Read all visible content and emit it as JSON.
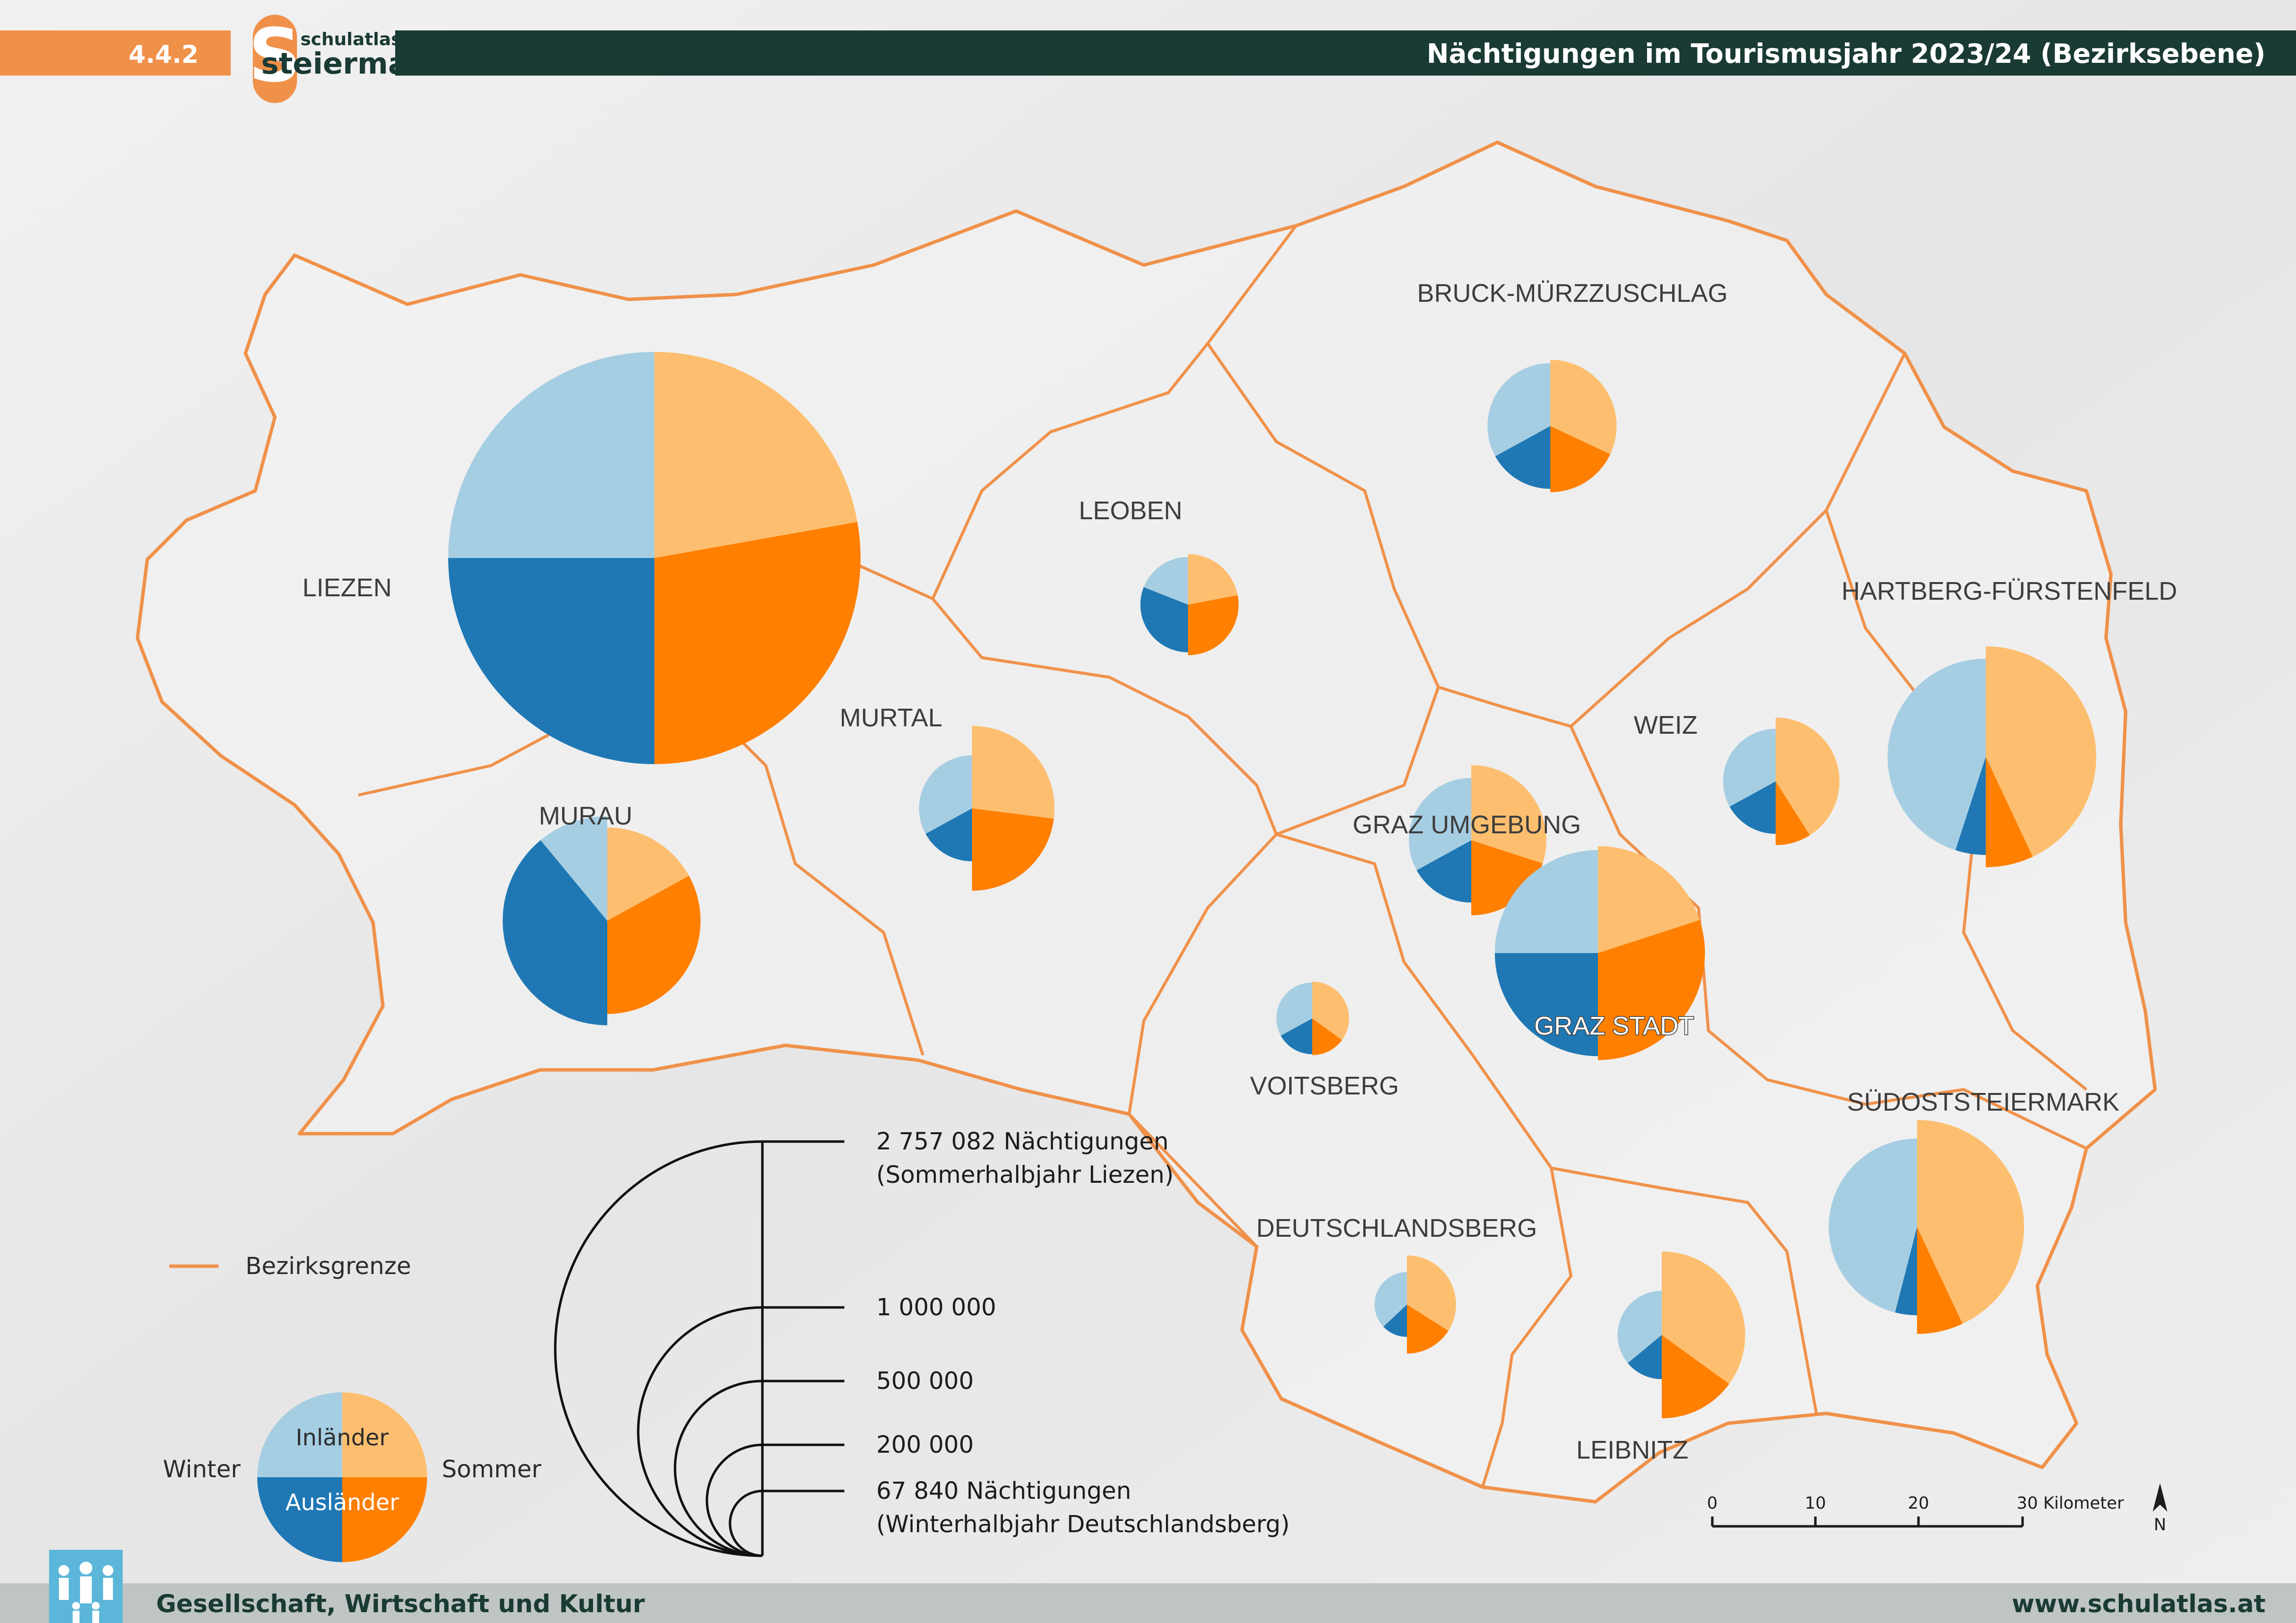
{
  "header": {
    "section_number": "4.4.2",
    "logo_small": "schulatlas",
    "logo_big": "steiermark",
    "logo_letter": "S",
    "title": "Nächtigungen im Tourismusjahr 2023/24 (Bezirksebene)"
  },
  "footer": {
    "category": "Gesellschaft, Wirtschaft und Kultur",
    "website": "www.schulatlas.at"
  },
  "colors": {
    "winter_inland": "#a6cee3",
    "winter_foreign": "#1f78b4",
    "summer_inland": "#fdbf6f",
    "summer_foreign": "#ff7f00",
    "district_border": "#f0914a",
    "header_bar": "#1a3a34",
    "accent_orange": "#f0914a",
    "footer_bar": "#bfc5c3"
  },
  "map": {
    "districts": [
      {
        "name": "LIEZEN",
        "winter_inland": 0.25,
        "winter_foreign": 0.25,
        "summer_inland": 0.222,
        "summer_foreign": 0.278
      },
      {
        "name": "LEOBEN",
        "winter_inland": 0.19,
        "winter_foreign": 0.31,
        "summer_inland": 0.22,
        "summer_foreign": 0.28
      },
      {
        "name": "BRUCK-MÜRZZUSCHLAG",
        "winter_inland": 0.33,
        "winter_foreign": 0.17,
        "summer_inland": 0.32,
        "summer_foreign": 0.18
      },
      {
        "name": "MURTAL",
        "winter_inland": 0.33,
        "winter_foreign": 0.17,
        "summer_inland": 0.27,
        "summer_foreign": 0.23
      },
      {
        "name": "MURAU",
        "winter_inland": 0.11,
        "winter_foreign": 0.39,
        "summer_inland": 0.17,
        "summer_foreign": 0.33
      },
      {
        "name": "WEIZ",
        "winter_inland": 0.33,
        "winter_foreign": 0.17,
        "summer_inland": 0.41,
        "summer_foreign": 0.09
      },
      {
        "name": "HARTBERG-FÜRSTENFELD",
        "winter_inland": 0.45,
        "winter_foreign": 0.05,
        "summer_inland": 0.43,
        "summer_foreign": 0.07
      },
      {
        "name": "GRAZ UMGEBUNG",
        "winter_inland": 0.33,
        "winter_foreign": 0.17,
        "summer_inland": 0.3,
        "summer_foreign": 0.2
      },
      {
        "name": "GRAZ STADT",
        "winter_inland": 0.25,
        "winter_foreign": 0.25,
        "summer_inland": 0.2,
        "summer_foreign": 0.3
      },
      {
        "name": "VOITSBERG",
        "winter_inland": 0.33,
        "winter_foreign": 0.17,
        "summer_inland": 0.35,
        "summer_foreign": 0.15
      },
      {
        "name": "SÜDOSTSTEIERMARK",
        "winter_inland": 0.46,
        "winter_foreign": 0.04,
        "summer_inland": 0.43,
        "summer_foreign": 0.07
      },
      {
        "name": "DEUTSCHLANDSBERG",
        "winter_inland": 0.37,
        "winter_foreign": 0.13,
        "summer_inland": 0.34,
        "summer_foreign": 0.16
      },
      {
        "name": "LEIBNITZ",
        "winter_inland": 0.36,
        "winter_foreign": 0.14,
        "summer_inland": 0.35,
        "summer_foreign": 0.15
      }
    ]
  },
  "legend": {
    "border_label": "Bezirksgrenze",
    "pie": {
      "winter": "Winter",
      "summer": "Sommer",
      "inland": "Inländer",
      "foreign": "Ausländer"
    },
    "size_scale": {
      "max_line1": "2 757 082 Nächtigungen",
      "max_line2": "(Sommerhalbjahr Liezen)",
      "l1": "1 000 000",
      "l2": "500 000",
      "l3": "200 000",
      "min_line1": "67 840 Nächtigungen",
      "min_line2": "(Winterhalbjahr Deutschlandsberg)"
    },
    "scalebar": {
      "t0": "0",
      "t10": "10",
      "t20": "20",
      "t30": "30 Kilometer",
      "north": "N"
    }
  }
}
